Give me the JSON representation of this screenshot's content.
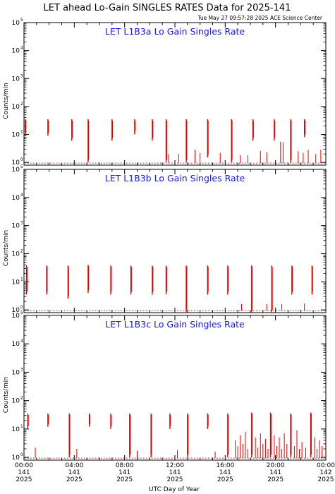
{
  "title": "LET ahead Lo-Gain SINGLES RATES Data for 2025-141",
  "timestamp": "Tue May 27 09:57:28 2025 ACE Science Center",
  "chart_data": {
    "type": "line",
    "xlabel": "UTC Day of Year",
    "x_range_hours": [
      0,
      24
    ],
    "x_ticks": [
      {
        "time": "00:00",
        "doy": "141",
        "year": "2025"
      },
      {
        "time": "04:00",
        "doy": "141",
        "year": "2025"
      },
      {
        "time": "08:00",
        "doy": "141",
        "year": "2025"
      },
      {
        "time": "12:00",
        "doy": "141",
        "year": "2025"
      },
      {
        "time": "16:00",
        "doy": "141",
        "year": "2025"
      },
      {
        "time": "20:00",
        "doy": "141",
        "year": "2025"
      },
      {
        "time": "00:00",
        "doy": "142",
        "year": "2025"
      }
    ],
    "y_scale": "log",
    "ylim": [
      0.8,
      100000
    ],
    "y_tick_base": "10",
    "y_tick_exps": [
      "0",
      "1",
      "2",
      "3",
      "4",
      "5"
    ],
    "line_color": "#e00000",
    "panels": [
      {
        "title": "LET L1B3a Lo Gain Singles Rate",
        "ylabel": "Counts/min",
        "baseline": 1,
        "spikes": [
          {
            "x": 0.1,
            "top": 35,
            "bottom": 9
          },
          {
            "x": 1.9,
            "top": 35,
            "bottom": 9
          },
          {
            "x": 3.8,
            "top": 35,
            "bottom": 6
          },
          {
            "x": 5.1,
            "top": 35,
            "bottom": 1
          },
          {
            "x": 7.0,
            "top": 35,
            "bottom": 6
          },
          {
            "x": 8.8,
            "top": 35,
            "bottom": 10
          },
          {
            "x": 10.2,
            "top": 35,
            "bottom": 6
          },
          {
            "x": 11.3,
            "top": 35,
            "bottom": 1
          },
          {
            "x": 12.9,
            "top": 35,
            "bottom": 1
          },
          {
            "x": 14.6,
            "top": 35,
            "bottom": 1.5
          },
          {
            "x": 16.5,
            "top": 35,
            "bottom": 1
          },
          {
            "x": 18.2,
            "top": 35,
            "bottom": 6
          },
          {
            "x": 19.9,
            "top": 35,
            "bottom": 6
          },
          {
            "x": 21.2,
            "top": 35,
            "bottom": 1
          },
          {
            "x": 22.3,
            "top": 35,
            "bottom": 8
          }
        ],
        "noise": [
          {
            "x": 11.5,
            "top": 2
          },
          {
            "x": 12.3,
            "top": 2
          },
          {
            "x": 13.6,
            "top": 2.8
          },
          {
            "x": 14.0,
            "top": 2.2
          },
          {
            "x": 15.6,
            "top": 2.2
          },
          {
            "x": 17.2,
            "top": 1.8
          },
          {
            "x": 17.8,
            "top": 1.8
          },
          {
            "x": 18.8,
            "top": 2.6
          },
          {
            "x": 19.3,
            "top": 2.3
          },
          {
            "x": 20.4,
            "top": 5.5
          },
          {
            "x": 20.6,
            "top": 5.2
          },
          {
            "x": 21.8,
            "top": 2.5
          },
          {
            "x": 22.2,
            "top": 2.2
          },
          {
            "x": 22.6,
            "top": 2.8
          },
          {
            "x": 23.2,
            "top": 2
          },
          {
            "x": 23.6,
            "top": 2.8
          }
        ]
      },
      {
        "title": "LET L1B3b Lo Gain Singles Rate",
        "ylabel": "Counts/min",
        "baseline": 1,
        "spikes": [
          {
            "x": 0.2,
            "top": 38,
            "bottom": 3.5
          },
          {
            "x": 1.8,
            "top": 38,
            "bottom": 3.5
          },
          {
            "x": 3.5,
            "top": 38,
            "bottom": 2.5
          },
          {
            "x": 5.1,
            "top": 40,
            "bottom": 4
          },
          {
            "x": 6.9,
            "top": 38,
            "bottom": 3.5
          },
          {
            "x": 8.5,
            "top": 38,
            "bottom": 3.5
          },
          {
            "x": 10.2,
            "top": 38,
            "bottom": 3.5
          },
          {
            "x": 11.3,
            "top": 38,
            "bottom": 3.5
          },
          {
            "x": 12.9,
            "top": 38,
            "bottom": 0.8
          },
          {
            "x": 14.6,
            "top": 38,
            "bottom": 3.5
          },
          {
            "x": 16.2,
            "top": 38,
            "bottom": 3.5
          },
          {
            "x": 18.1,
            "top": 38,
            "bottom": 0.8
          },
          {
            "x": 19.7,
            "top": 38,
            "bottom": 0.8
          },
          {
            "x": 21.3,
            "top": 38,
            "bottom": 3.5
          },
          {
            "x": 22.9,
            "top": 38,
            "bottom": 3.5
          }
        ],
        "noise": [
          {
            "x": 17.3,
            "top": 1.6
          },
          {
            "x": 19.3,
            "top": 1.6
          },
          {
            "x": 20.5,
            "top": 1.6
          },
          {
            "x": 22.3,
            "top": 1.7
          }
        ]
      },
      {
        "title": "LET L1B3c Lo Gain Singles Rate",
        "ylabel": "Counts/min",
        "baseline": 1,
        "spikes": [
          {
            "x": 0.3,
            "top": 35,
            "bottom": 10
          },
          {
            "x": 1.9,
            "top": 35,
            "bottom": 12
          },
          {
            "x": 3.6,
            "top": 35,
            "bottom": 1
          },
          {
            "x": 5.2,
            "top": 35,
            "bottom": 12
          },
          {
            "x": 6.9,
            "top": 35,
            "bottom": 10
          },
          {
            "x": 8.4,
            "top": 35,
            "bottom": 1
          },
          {
            "x": 10.1,
            "top": 35,
            "bottom": 1
          },
          {
            "x": 11.6,
            "top": 35,
            "bottom": 10
          },
          {
            "x": 13.0,
            "top": 35,
            "bottom": 1
          },
          {
            "x": 14.6,
            "top": 35,
            "bottom": 10
          },
          {
            "x": 16.2,
            "top": 35,
            "bottom": 1
          },
          {
            "x": 18.1,
            "top": 38,
            "bottom": 1
          },
          {
            "x": 19.6,
            "top": 38,
            "bottom": 1
          },
          {
            "x": 21.2,
            "top": 35,
            "bottom": 1
          },
          {
            "x": 22.8,
            "top": 38,
            "bottom": 1
          }
        ],
        "noise": [
          {
            "x": 0.9,
            "top": 2.2
          },
          {
            "x": 4.2,
            "top": 2
          },
          {
            "x": 9.0,
            "top": 1.7
          },
          {
            "x": 12.2,
            "top": 1.8
          },
          {
            "x": 15.2,
            "top": 1.6
          },
          {
            "x": 16.8,
            "top": 4
          },
          {
            "x": 17.0,
            "top": 2.5
          },
          {
            "x": 17.2,
            "top": 6
          },
          {
            "x": 17.4,
            "top": 3
          },
          {
            "x": 17.6,
            "top": 8
          },
          {
            "x": 17.8,
            "top": 2
          },
          {
            "x": 18.4,
            "top": 5
          },
          {
            "x": 18.6,
            "top": 2.2
          },
          {
            "x": 18.8,
            "top": 7
          },
          {
            "x": 19.0,
            "top": 3
          },
          {
            "x": 19.2,
            "top": 4.5
          },
          {
            "x": 19.4,
            "top": 2
          },
          {
            "x": 19.9,
            "top": 6
          },
          {
            "x": 20.1,
            "top": 2.5
          },
          {
            "x": 20.3,
            "top": 5
          },
          {
            "x": 20.5,
            "top": 2
          },
          {
            "x": 20.7,
            "top": 7
          },
          {
            "x": 20.9,
            "top": 3
          },
          {
            "x": 21.5,
            "top": 2.5
          },
          {
            "x": 21.7,
            "top": 9
          },
          {
            "x": 21.9,
            "top": 2
          },
          {
            "x": 22.1,
            "top": 3.5
          },
          {
            "x": 22.4,
            "top": 2.2
          },
          {
            "x": 23.1,
            "top": 5
          },
          {
            "x": 23.3,
            "top": 2
          },
          {
            "x": 23.5,
            "top": 4
          },
          {
            "x": 23.7,
            "top": 2.5
          }
        ]
      }
    ]
  }
}
